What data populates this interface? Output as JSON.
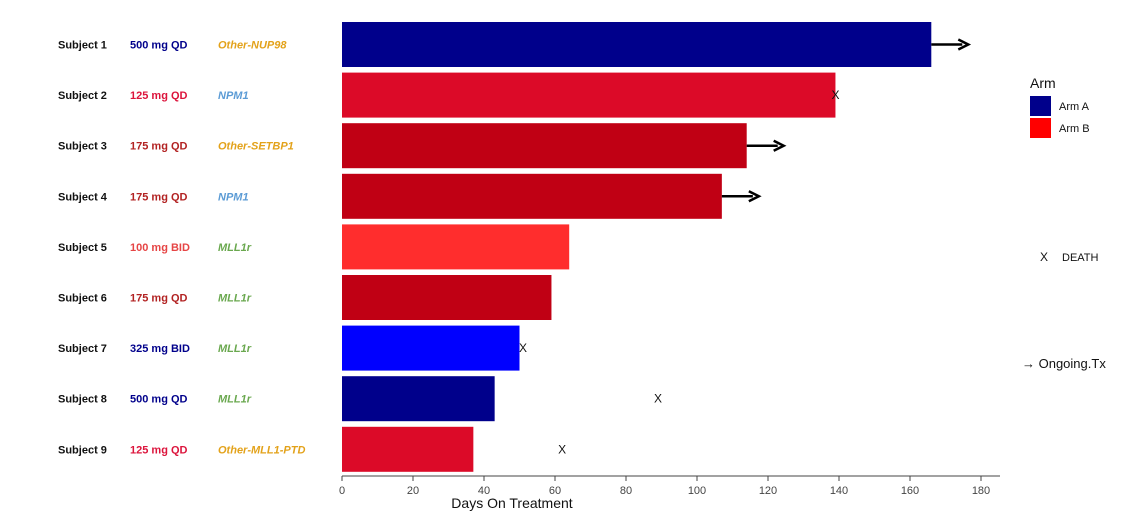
{
  "chart_data": {
    "type": "bar",
    "orientation": "horizontal",
    "xlabel": "Days On Treatment",
    "xlim": [
      0,
      182
    ],
    "xticks": [
      0,
      20,
      40,
      60,
      80,
      100,
      120,
      140,
      160,
      180
    ],
    "grid": false,
    "rows": [
      {
        "subject": "Subject 1",
        "dose": "500 mg QD",
        "mutation": "Other-NUP98",
        "arm": "Arm A",
        "days": 166,
        "ongoing": true,
        "death_day": null,
        "bar_color": "#00008B",
        "dose_color": "#00008B",
        "mutation_color": "#E3A21A"
      },
      {
        "subject": "Subject 2",
        "dose": "125 mg QD",
        "mutation": "NPM1",
        "arm": "Arm B",
        "days": 139,
        "ongoing": false,
        "death_day": 139,
        "bar_color": "#DC0A28",
        "dose_color": "#DC143C",
        "mutation_color": "#5B9BD5"
      },
      {
        "subject": "Subject 3",
        "dose": "175 mg QD",
        "mutation": "Other-SETBP1",
        "arm": "Arm B",
        "days": 114,
        "ongoing": true,
        "death_day": null,
        "bar_color": "#C00014",
        "dose_color": "#B22222",
        "mutation_color": "#E3A21A"
      },
      {
        "subject": "Subject 4",
        "dose": "175 mg QD",
        "mutation": "NPM1",
        "arm": "Arm B",
        "days": 107,
        "ongoing": true,
        "death_day": null,
        "bar_color": "#C00014",
        "dose_color": "#B22222",
        "mutation_color": "#5B9BD5"
      },
      {
        "subject": "Subject 5",
        "dose": "100 mg BID",
        "mutation": "MLL1r",
        "arm": "Arm B",
        "days": 64,
        "ongoing": false,
        "death_day": null,
        "bar_color": "#FF2D2D",
        "dose_color": "#E64545",
        "mutation_color": "#6AA84F"
      },
      {
        "subject": "Subject 6",
        "dose": "175 mg QD",
        "mutation": "MLL1r",
        "arm": "Arm B",
        "days": 59,
        "ongoing": false,
        "death_day": null,
        "bar_color": "#C00014",
        "dose_color": "#B22222",
        "mutation_color": "#6AA84F"
      },
      {
        "subject": "Subject 7",
        "dose": "325 mg BID",
        "mutation": "MLL1r",
        "arm": "Arm A",
        "days": 50,
        "ongoing": false,
        "death_day": 51,
        "bar_color": "#0000FF",
        "dose_color": "#00008B",
        "mutation_color": "#6AA84F"
      },
      {
        "subject": "Subject 8",
        "dose": "500 mg QD",
        "mutation": "MLL1r",
        "arm": "Arm A",
        "days": 43,
        "ongoing": false,
        "death_day": 89,
        "bar_color": "#00008B",
        "dose_color": "#00008B",
        "mutation_color": "#6AA84F"
      },
      {
        "subject": "Subject 9",
        "dose": "125 mg QD",
        "mutation": "Other-MLL1-PTD",
        "arm": "Arm B",
        "days": 37,
        "ongoing": false,
        "death_day": 62,
        "bar_color": "#DC0A28",
        "dose_color": "#DC143C",
        "mutation_color": "#E3A21A"
      }
    ],
    "legend": {
      "title": "Arm",
      "placement": "right",
      "items": [
        {
          "label": "Arm A",
          "color": "#00008B"
        },
        {
          "label": "Arm B",
          "color": "#FF0000"
        }
      ],
      "death_marker": "X",
      "death_label": "DEATH",
      "ongoing_label": "→ Ongoing.Tx"
    }
  }
}
